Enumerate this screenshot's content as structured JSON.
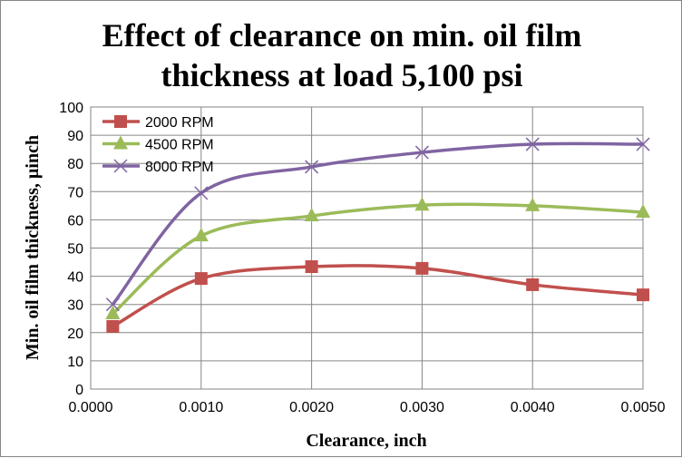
{
  "chart_data": {
    "type": "line",
    "title_line1": "Effect of clearance on min. oil film",
    "title_line2": "thickness at load 5,100 psi",
    "xlabel": "Clearance, inch",
    "ylabel": "Min. oil film thickness, µinch",
    "xlim": [
      0,
      0.005
    ],
    "ylim": [
      0,
      100
    ],
    "xticks": [
      "0.0000",
      "0.0010",
      "0.0020",
      "0.0030",
      "0.0040",
      "0.0050"
    ],
    "yticks": [
      "0",
      "10",
      "20",
      "30",
      "40",
      "50",
      "60",
      "70",
      "80",
      "90",
      "100"
    ],
    "grid": true,
    "smooth": true,
    "legend_position": "top-left",
    "x": [
      0.0002,
      0.001,
      0.002,
      0.003,
      0.004,
      0.005
    ],
    "series": [
      {
        "name": "2000 RPM",
        "color": "#C0504D",
        "marker": "square",
        "values": [
          22.2,
          39.2,
          43.4,
          42.8,
          37.0,
          33.4
        ]
      },
      {
        "name": "4500 RPM",
        "color": "#9BBB59",
        "marker": "triangle",
        "values": [
          26.7,
          54.3,
          61.4,
          65.2,
          65.0,
          62.7
        ]
      },
      {
        "name": "8000 RPM",
        "color": "#8064A2",
        "marker": "x",
        "values": [
          30.0,
          69.5,
          78.8,
          83.9,
          86.8,
          86.8
        ]
      }
    ]
  }
}
